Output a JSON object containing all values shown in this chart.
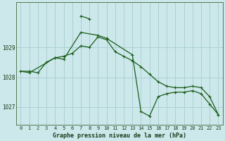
{
  "title": "Graphe pression niveau de la mer (hPa)",
  "background_color": "#cce8ea",
  "grid_color": "#aad0d4",
  "line_color": "#1a5c1a",
  "x_values": [
    0,
    1,
    2,
    3,
    4,
    5,
    6,
    7,
    8,
    9,
    10,
    11,
    12,
    13,
    14,
    15,
    16,
    17,
    18,
    19,
    20,
    21,
    22,
    23
  ],
  "line1": [
    1028.2,
    1028.2,
    1028.15,
    1028.5,
    1028.65,
    1028.7,
    1028.8,
    1029.05,
    1029.0,
    1029.35,
    1029.25,
    1028.85,
    1028.7,
    1028.55,
    1028.35,
    1028.1,
    1027.85,
    1027.7,
    1027.65,
    1027.65,
    1027.7,
    1027.65,
    1027.35,
    1026.75
  ],
  "line2_x": [
    0,
    1,
    4,
    5,
    7,
    9,
    10,
    13,
    14,
    15,
    16,
    17,
    18,
    19,
    20,
    21,
    22,
    23
  ],
  "line2_y": [
    1028.2,
    1028.15,
    1028.65,
    1028.6,
    1029.5,
    1029.4,
    1029.3,
    1028.75,
    1026.85,
    1026.7,
    1027.35,
    1027.45,
    1027.5,
    1027.5,
    1027.55,
    1027.45,
    1027.1,
    1026.75
  ],
  "line3_x": [
    7,
    8
  ],
  "line3_y": [
    1030.05,
    1029.95
  ],
  "ylim": [
    1026.4,
    1030.5
  ],
  "yticks": [
    1027,
    1028,
    1029
  ],
  "xticks": [
    0,
    1,
    2,
    3,
    4,
    5,
    6,
    7,
    8,
    9,
    10,
    11,
    12,
    13,
    14,
    15,
    16,
    17,
    18,
    19,
    20,
    21,
    22,
    23
  ]
}
